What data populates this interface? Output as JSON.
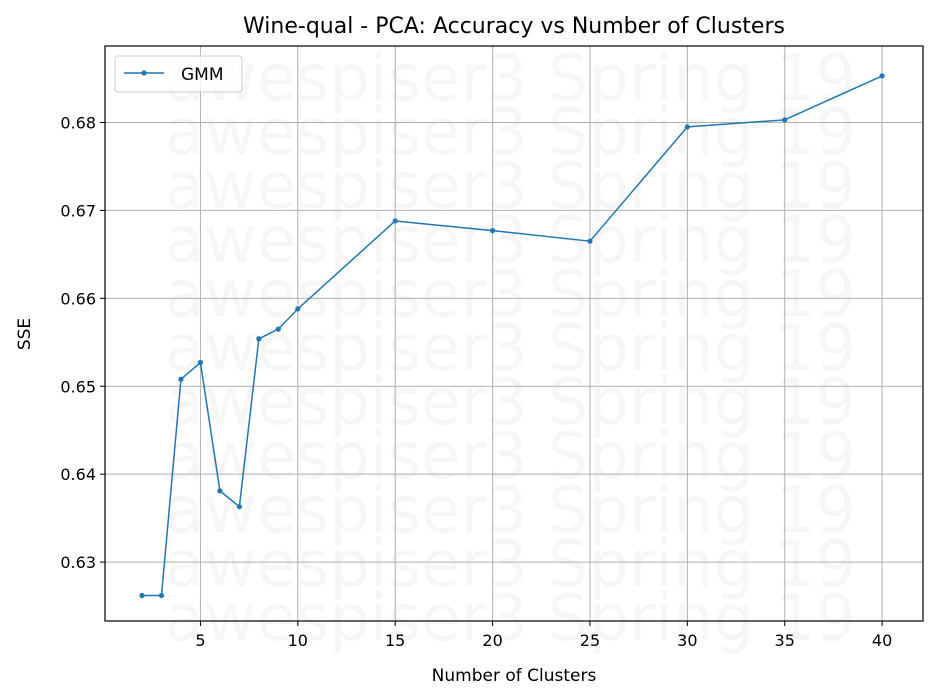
{
  "chart_data": {
    "type": "line",
    "title": "Wine-qual - PCA: Accuracy vs Number of Clusters",
    "xlabel": "Number of Clusters",
    "ylabel": "SSE",
    "xlim": [
      0.1,
      42.1
    ],
    "ylim": [
      0.6233,
      0.6887
    ],
    "xticks": [
      5,
      10,
      15,
      20,
      25,
      30,
      35,
      40
    ],
    "yticks": [
      0.63,
      0.64,
      0.65,
      0.66,
      0.67,
      0.68
    ],
    "grid": true,
    "legend_position": "top-left",
    "series": [
      {
        "name": "GMM",
        "color": "#1f77b4",
        "x": [
          2,
          3,
          4,
          5,
          6,
          7,
          8,
          9,
          10,
          15,
          20,
          25,
          30,
          35,
          40
        ],
        "y": [
          0.6262,
          0.6262,
          0.6508,
          0.6527,
          0.6381,
          0.6363,
          0.6554,
          0.6565,
          0.6588,
          0.6688,
          0.6677,
          0.6665,
          0.6795,
          0.6803,
          0.6853
        ]
      }
    ],
    "watermark": {
      "text": "awespiser3 Spring 19"
    }
  }
}
